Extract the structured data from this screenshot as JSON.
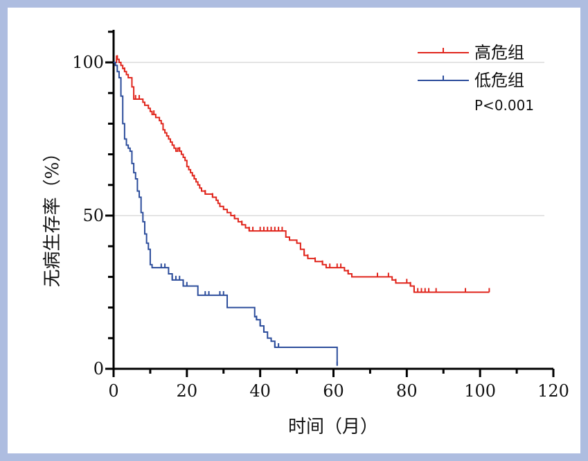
{
  "chart_data": {
    "type": "line",
    "subtype": "kaplan-meier",
    "xlabel": "时间（月）",
    "ylabel": "无病生存率（%）",
    "xlim": [
      0,
      120
    ],
    "ylim": [
      0,
      110
    ],
    "x_ticks": [
      "0",
      "20",
      "40",
      "60",
      "80",
      "100",
      "120"
    ],
    "y_ticks": [
      "0",
      "50",
      "100"
    ],
    "grid": "horizontal at 50 and 100",
    "legend_position": "top-right",
    "annotation": "P<0.001",
    "series": [
      {
        "name": "高危组",
        "color": "#e0241b",
        "points": [
          [
            0,
            100
          ],
          [
            0.8,
            102
          ],
          [
            1,
            101
          ],
          [
            1.5,
            100
          ],
          [
            2,
            99
          ],
          [
            2.5,
            98
          ],
          [
            3,
            97
          ],
          [
            3.5,
            96
          ],
          [
            4,
            95
          ],
          [
            5,
            92
          ],
          [
            5.5,
            88
          ],
          [
            7,
            88
          ],
          [
            8,
            87
          ],
          [
            8.5,
            86
          ],
          [
            9.5,
            85
          ],
          [
            10,
            84
          ],
          [
            10.5,
            83
          ],
          [
            11.5,
            82
          ],
          [
            12,
            82
          ],
          [
            12.5,
            81
          ],
          [
            13,
            80
          ],
          [
            13.5,
            78
          ],
          [
            14,
            77
          ],
          [
            14.5,
            76
          ],
          [
            15,
            75
          ],
          [
            15.5,
            74
          ],
          [
            16,
            73
          ],
          [
            16.5,
            72
          ],
          [
            17,
            71
          ],
          [
            17.5,
            72
          ],
          [
            18,
            71
          ],
          [
            18.5,
            70
          ],
          [
            19,
            69
          ],
          [
            19.5,
            68
          ],
          [
            20,
            66
          ],
          [
            20.5,
            65
          ],
          [
            21,
            64
          ],
          [
            21.5,
            63
          ],
          [
            22,
            62
          ],
          [
            22.5,
            61
          ],
          [
            23,
            60
          ],
          [
            23.5,
            59
          ],
          [
            24,
            58
          ],
          [
            25,
            57
          ],
          [
            26,
            57
          ],
          [
            27,
            56
          ],
          [
            28,
            55
          ],
          [
            28.5,
            54
          ],
          [
            29,
            53
          ],
          [
            30,
            52
          ],
          [
            31,
            51
          ],
          [
            32,
            50
          ],
          [
            33,
            49
          ],
          [
            34,
            48
          ],
          [
            35,
            47
          ],
          [
            36,
            46
          ],
          [
            37,
            45
          ],
          [
            42,
            45
          ],
          [
            46,
            45
          ],
          [
            47,
            43
          ],
          [
            48,
            42
          ],
          [
            50,
            41
          ],
          [
            51,
            39
          ],
          [
            52,
            37
          ],
          [
            53,
            36
          ],
          [
            55,
            35
          ],
          [
            57,
            34
          ],
          [
            58,
            33
          ],
          [
            62,
            33
          ],
          [
            63,
            32
          ],
          [
            64,
            31
          ],
          [
            65,
            30
          ],
          [
            74,
            30
          ],
          [
            76,
            29
          ],
          [
            77,
            28
          ],
          [
            80,
            28
          ],
          [
            81,
            27
          ],
          [
            82,
            25
          ],
          [
            102,
            25
          ],
          [
            102.5,
            25
          ]
        ],
        "censor_x": [
          1,
          3,
          6,
          7,
          11,
          18,
          22,
          25,
          27,
          33,
          35,
          37,
          38,
          40,
          41,
          42,
          43,
          44,
          45,
          46,
          52,
          53,
          55,
          57,
          59,
          61,
          62,
          64,
          72,
          75,
          77,
          80,
          81,
          82,
          83,
          84,
          85,
          86,
          88,
          96,
          102.5
        ]
      },
      {
        "name": "低危组",
        "color": "#2b4c9b",
        "points": [
          [
            0,
            100
          ],
          [
            0.5,
            99
          ],
          [
            1,
            97
          ],
          [
            1.5,
            95
          ],
          [
            2,
            89
          ],
          [
            2.5,
            80
          ],
          [
            3,
            75
          ],
          [
            3.5,
            73
          ],
          [
            4,
            72
          ],
          [
            4.5,
            71
          ],
          [
            5,
            67
          ],
          [
            5.5,
            64
          ],
          [
            6,
            62
          ],
          [
            6.5,
            58
          ],
          [
            7,
            56
          ],
          [
            7.5,
            51
          ],
          [
            8,
            48
          ],
          [
            8.5,
            44
          ],
          [
            9,
            41
          ],
          [
            9.5,
            39
          ],
          [
            10,
            34
          ],
          [
            10.5,
            33
          ],
          [
            14,
            33
          ],
          [
            15,
            31
          ],
          [
            16,
            29
          ],
          [
            18,
            29
          ],
          [
            19,
            27
          ],
          [
            22,
            27
          ],
          [
            23,
            24
          ],
          [
            30,
            24
          ],
          [
            31,
            20
          ],
          [
            38,
            20
          ],
          [
            38.5,
            17
          ],
          [
            39,
            16
          ],
          [
            40,
            14
          ],
          [
            41,
            12
          ],
          [
            42,
            10
          ],
          [
            43,
            9
          ],
          [
            44,
            7
          ],
          [
            60,
            7
          ],
          [
            60.5,
            7
          ],
          [
            61,
            1
          ]
        ],
        "censor_x": [
          13,
          14,
          16,
          17,
          18,
          19,
          20,
          25,
          26,
          29,
          30,
          39,
          40,
          41,
          44,
          45,
          61
        ]
      }
    ]
  }
}
